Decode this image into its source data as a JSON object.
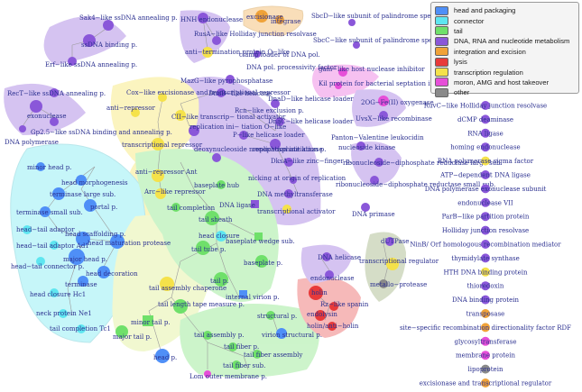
{
  "legend": [
    {
      "label": "head and packaging",
      "color": "#4f8ff7"
    },
    {
      "label": "connector",
      "color": "#5ee6f0"
    },
    {
      "label": "tail",
      "color": "#6fe06a"
    },
    {
      "label": "DNA, RNA and nucleotide metabolism",
      "color": "#8a57d9"
    },
    {
      "label": "integration and excision",
      "color": "#f0a238"
    },
    {
      "label": "lysis",
      "color": "#e83a3a"
    },
    {
      "label": "transcription regulation",
      "color": "#f5e24a"
    },
    {
      "label": "moron, AMG and host takeover",
      "color": "#e64fd8"
    },
    {
      "label": "other",
      "color": "#8a8a8a"
    }
  ],
  "colors": {
    "head": "#4f8ff7",
    "connector": "#5ee6f0",
    "tail": "#6fe06a",
    "dna": "#8a57d9",
    "integration": "#f0a238",
    "lysis": "#e83a3a",
    "transcription": "#f5e24a",
    "moron": "#e64fd8",
    "other": "#8a8a8a"
  },
  "labels": {
    "sak4": "Sak4−like ssDNA annealing p.",
    "ssdna_binding": "ssDNA binding p.",
    "erf": "Erf−like ssDNA annealing p.",
    "hnh": "HNH endonuclease",
    "rusa": "RusA−like Holliday junction resolvase",
    "anti_term": "anti−termination protein Q−like",
    "excisionase": "excisionase",
    "integrase": "integrase",
    "sbcd": "SbcD−like subunit of palindrome specific endonuclease",
    "sbcc": "SbcC−like subunit of palindrome specific endonuclease",
    "clamp": "clamp loader of DNA pol.",
    "dna_pol_proc": "DNA pol. processivity factor",
    "gam": "gam−like host nuclease inhibitor",
    "kil": "Kil protein for bacterial septation inhibition",
    "rect": "RecT−like ssDNA annealing p.",
    "exonuclease": "exonuclease",
    "gp25": "Gp2.5−like ssDNA binding and annealing p.",
    "dna_polymerase": "DNA polymerase",
    "mazg": "MazG−like pyrophosphatase",
    "cox": "Cox−like excisionase and transcriptional repressor",
    "dnab": "DnaB−like helicase",
    "ci_rep": "CII−like transcrip− tional activator",
    "anti_rep": "anti−repressor",
    "replic_init_o": "replication ini− tiation O−like",
    "trans_rep": "transcriptional repressor",
    "anti_rep_ant": "anti−repressor Ant",
    "arc": "Arc−like repressor",
    "recomb": "Rcn−like exclusion p.",
    "dnad": "DnaD−like helicase loader",
    "dnac": "DnaC−like helicase loader",
    "pl_loader": "P−like helicase loader",
    "ogv": "2OG−Fe(II) oxygenase",
    "uvsx": "UvsX−like recombinase",
    "panton": "Panton−Valentine leukocidin",
    "nucleoside_kinase": "nucleoside kinase",
    "replic_init": "replication initiation p.",
    "dksa": "DksA−like zinc−finger p.",
    "nicking": "nicking at origin of replication",
    "dna_methyl": "DNA methyltransferase",
    "trans_act": "transcriptional activator",
    "rnr_large": "ribonucleoside−diphosphate reductase large sub.",
    "rnr_small": "ribonucleoside−diphosphate reductase small sub.",
    "dna_primase": "DNA primase",
    "minor_head": "minor head p.",
    "head_morph": "head morphogenesis",
    "terminase_large": "terminase large sub.",
    "portal": "portal p.",
    "terminase_small": "terminase small sub.",
    "head_tail_adaptor": "head−tail adaptor",
    "head_tail_ad1": "head−tail adaptor Ad1",
    "head_tail_conn": "head−tail connector p.",
    "head_scaffold": "head scaffolding p.",
    "major_head": "major head p.",
    "head_maturation": "head maturation protease",
    "terminase": "terminase",
    "head_closure_hc1": "head closure Hc1",
    "head_decoration": "head decoration",
    "neck_ne1": "neck protein Ne1",
    "tail_completion_tc1": "tail completion Tc1",
    "deoxynucleoside": "deoxynucleoside monophosphate kinase",
    "baseplate_hub": "baseplate hub",
    "tail_completion": "tail completion",
    "dna_ligase": "DNA ligase",
    "tail_sheath": "tail sheath",
    "head_closure": "head closure",
    "baseplate_wedge": "baseplate wedge sub.",
    "tail_tube": "tail tube p.",
    "baseplate": "baseplate p.",
    "tail_p": "tail p.",
    "internal_virion": "internal virion p.",
    "tail_assembly_chap": "tail assembly chaperone",
    "tail_length": "tail length tape measure p.",
    "minor_tail": "minor tail p.",
    "major_tail": "major tail p.",
    "head_p": "head p.",
    "tail_assembly_p": "tail assembly p.",
    "structural_p": "structural p.",
    "virion_structural": "virion structural p.",
    "tail_fiber_p": "tail fiber p.",
    "tail_fiber_assembly": "tail fiber assembly",
    "tail_fiber_sub": "tail fiber sub.",
    "lom": "Lom outer membrane p.",
    "dna_helicase": "DNA helicase",
    "endonuclease": "endonuclease",
    "dutpase": "dUTPase",
    "trans_reg": "transcriptional regulator",
    "metallo": "metallo−protease",
    "holin": "holin",
    "rz": "Rz−like spanin",
    "endolysin": "endolysin",
    "holin_anti": "holin/anti−holin"
  },
  "singletons": [
    {
      "label": "RuvC−like Holliday junction resolvase",
      "cat": "dna"
    },
    {
      "label": "dCMP deaminase",
      "cat": "dna"
    },
    {
      "label": "RNA ligase",
      "cat": "dna"
    },
    {
      "label": "homing endonuclease",
      "cat": "dna"
    },
    {
      "label": "RNA polymerase sigma factor",
      "cat": "transcription"
    },
    {
      "label": "ATP−dependent DNA ligase",
      "cat": "dna"
    },
    {
      "label": "DNA polymerase exonuclease subunit",
      "cat": "dna"
    },
    {
      "label": "endonuclease VII",
      "cat": "dna"
    },
    {
      "label": "ParB−like partition protein",
      "cat": "dna"
    },
    {
      "label": "Holliday junction resolvase",
      "cat": "dna"
    },
    {
      "label": "NinB/ Orf homologous recombination mediator",
      "cat": "dna"
    },
    {
      "label": "thymidylate synthase",
      "cat": "dna"
    },
    {
      "label": "HTH DNA binding protein",
      "cat": "transcription"
    },
    {
      "label": "thioredoxin",
      "cat": "dna"
    },
    {
      "label": "DNA binding protein",
      "cat": "dna"
    },
    {
      "label": "transposase",
      "cat": "integration"
    },
    {
      "label": "site−specific recombination directionality factor RDF",
      "cat": "integration"
    },
    {
      "label": "glycosyltransferase",
      "cat": "moron"
    },
    {
      "label": "membrane protein",
      "cat": "moron"
    },
    {
      "label": "lipoprotein",
      "cat": "other"
    },
    {
      "label": "excisionase and transcriptional regulator",
      "cat": "integration"
    }
  ]
}
